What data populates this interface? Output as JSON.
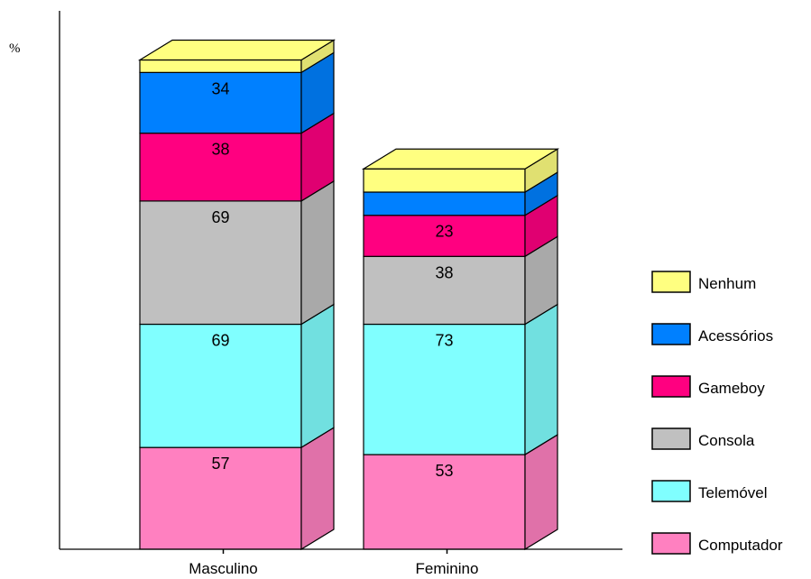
{
  "chart_data": {
    "type": "bar",
    "stacked": true,
    "three_d": true,
    "ylabel": "%",
    "categories": [
      "Masculino",
      "Feminino"
    ],
    "series": [
      {
        "name": "Computador",
        "values": [
          57,
          53
        ],
        "color": "#ff80c0"
      },
      {
        "name": "Telemóvel",
        "values": [
          69,
          73
        ],
        "color": "#80ffff"
      },
      {
        "name": "Consola",
        "values": [
          69,
          38
        ],
        "color": "#c0c0c0"
      },
      {
        "name": "Gameboy",
        "values": [
          38,
          23
        ],
        "color": "#ff0080"
      },
      {
        "name": "Acessórios",
        "values": [
          34,
          13
        ],
        "color": "#0080ff"
      },
      {
        "name": "Nenhum",
        "values": [
          7,
          13
        ],
        "color": "#ffff80"
      }
    ],
    "data_labels": [
      [
        "57",
        "53"
      ],
      [
        "69",
        "73"
      ],
      [
        "69",
        "38"
      ],
      [
        "38",
        "23"
      ],
      [
        "34",
        ""
      ],
      [
        "",
        ""
      ]
    ],
    "legend": {
      "position": "right",
      "order": [
        "Nenhum",
        "Acessórios",
        "Gameboy",
        "Consola",
        "Telemóvel",
        "Computador"
      ]
    },
    "grid": false
  }
}
